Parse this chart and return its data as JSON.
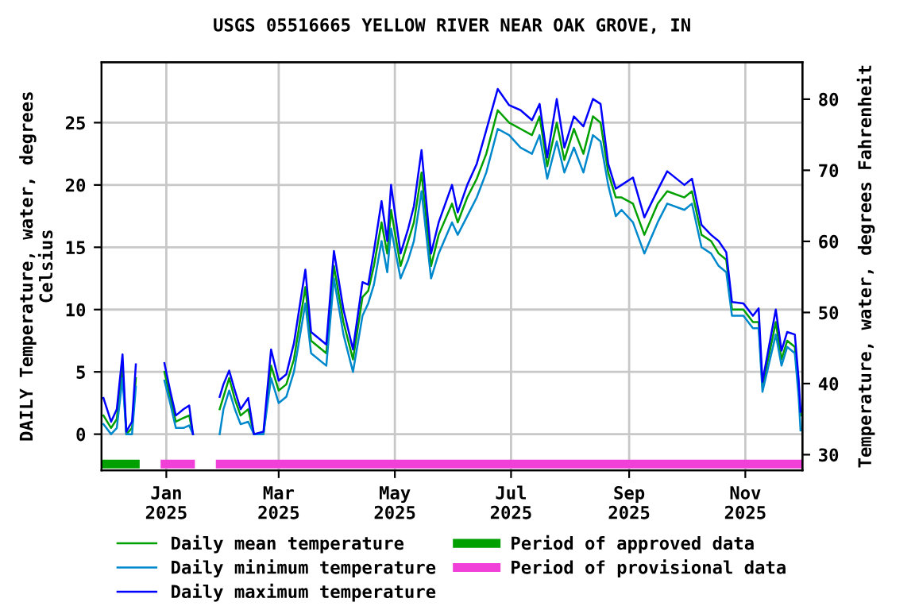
{
  "chart_data": {
    "type": "line",
    "title": "USGS 05516665 YELLOW RIVER NEAR OAK GROVE, IN",
    "ylabel": "DAILY Temperature, water, degrees\nCelsius",
    "y2label": "Temperature, water, degrees Fahrenheit",
    "x": [
      "2024-11-29",
      "2024-12-03",
      "2024-12-06",
      "2024-12-09",
      "2024-12-11",
      "2024-12-14",
      "2024-12-16",
      "2024-12-20",
      "2024-12-31",
      "2025-01-03",
      "2025-01-06",
      "2025-01-10",
      "2025-01-13",
      "2025-01-15",
      "2025-01-22",
      "2025-01-29",
      "2025-01-31",
      "2025-02-03",
      "2025-02-06",
      "2025-02-09",
      "2025-02-13",
      "2025-02-16",
      "2025-02-21",
      "2025-02-25",
      "2025-03-01",
      "2025-03-05",
      "2025-03-09",
      "2025-03-15",
      "2025-03-18",
      "2025-03-26",
      "2025-03-30",
      "2025-04-04",
      "2025-04-09",
      "2025-04-14",
      "2025-04-17",
      "2025-04-20",
      "2025-04-24",
      "2025-04-27",
      "2025-04-29",
      "2025-05-04",
      "2025-05-08",
      "2025-05-11",
      "2025-05-15",
      "2025-05-20",
      "2025-05-24",
      "2025-05-31",
      "2025-06-03",
      "2025-06-08",
      "2025-06-13",
      "2025-06-18",
      "2025-06-24",
      "2025-06-30",
      "2025-07-06",
      "2025-07-12",
      "2025-07-16",
      "2025-07-20",
      "2025-07-25",
      "2025-07-29",
      "2025-08-03",
      "2025-08-08",
      "2025-08-13",
      "2025-08-17",
      "2025-08-21",
      "2025-08-25",
      "2025-08-28",
      "2025-09-03",
      "2025-09-09",
      "2025-09-16",
      "2025-09-21",
      "2025-09-30",
      "2025-10-04",
      "2025-10-09",
      "2025-10-14",
      "2025-10-18",
      "2025-10-22",
      "2025-10-25",
      "2025-10-31",
      "2025-11-05",
      "2025-11-08",
      "2025-11-10",
      "2025-11-17",
      "2025-11-20",
      "2025-11-23",
      "2025-11-27",
      "2025-11-29",
      "2025-11-30"
    ],
    "series": [
      {
        "name": "Daily mean temperature",
        "color": "#00a000",
        "values": [
          1.5,
          0.5,
          1.2,
          5.5,
          0.0,
          0.5,
          4.5,
          null,
          5.0,
          3.0,
          1.0,
          1.3,
          1.5,
          0.0,
          null,
          2.0,
          3.0,
          4.5,
          2.8,
          1.5,
          2.0,
          0.0,
          0.0,
          5.5,
          3.5,
          4.0,
          6.0,
          11.8,
          7.5,
          6.5,
          13.5,
          9.0,
          6.0,
          11.0,
          11.5,
          13.5,
          17.0,
          14.5,
          18.0,
          13.5,
          15.5,
          17.0,
          21.0,
          13.5,
          16.0,
          18.5,
          17.0,
          19.0,
          20.5,
          22.5,
          26.0,
          25.0,
          24.5,
          24.0,
          25.5,
          21.5,
          25.0,
          22.0,
          24.5,
          22.5,
          25.5,
          25.0,
          21.0,
          19.0,
          19.0,
          18.5,
          16.0,
          18.5,
          19.5,
          19.0,
          19.5,
          16.0,
          15.5,
          14.5,
          14.0,
          10.0,
          10.0,
          9.0,
          9.0,
          3.8,
          9.0,
          6.0,
          7.5,
          7.0,
          3.5,
          1.5
        ]
      },
      {
        "name": "Daily minimum temperature",
        "color": "#0088cc",
        "values": [
          0.8,
          0.0,
          0.5,
          4.5,
          0.0,
          0.0,
          3.8,
          null,
          4.3,
          2.5,
          0.5,
          0.5,
          0.7,
          0.0,
          null,
          0.0,
          2.0,
          3.5,
          2.0,
          0.8,
          1.0,
          0.0,
          0.0,
          4.5,
          2.5,
          3.0,
          5.0,
          10.5,
          6.5,
          5.5,
          12.5,
          8.0,
          5.0,
          9.5,
          10.5,
          12.0,
          15.5,
          13.0,
          16.5,
          12.5,
          14.0,
          15.5,
          19.5,
          12.5,
          14.5,
          17.0,
          16.0,
          17.5,
          19.0,
          21.0,
          24.5,
          24.0,
          23.0,
          22.5,
          24.0,
          20.5,
          23.5,
          21.0,
          23.0,
          21.0,
          24.0,
          23.5,
          20.0,
          17.5,
          18.0,
          17.0,
          14.5,
          17.0,
          18.5,
          18.0,
          18.5,
          15.0,
          14.5,
          13.5,
          13.0,
          9.5,
          9.5,
          8.5,
          8.5,
          3.4,
          8.0,
          5.5,
          7.0,
          6.5,
          3.0,
          0.3
        ]
      },
      {
        "name": "Daily maximum temperature",
        "color": "#0000ff",
        "values": [
          2.9,
          1.0,
          2.0,
          6.4,
          0.2,
          1.0,
          5.6,
          null,
          5.7,
          3.5,
          1.5,
          2.0,
          2.3,
          0.0,
          null,
          3.0,
          4.0,
          5.1,
          3.5,
          2.0,
          2.9,
          0.0,
          0.2,
          6.8,
          4.3,
          4.8,
          7.3,
          13.2,
          8.2,
          7.2,
          14.7,
          10.0,
          6.8,
          12.2,
          12.0,
          14.7,
          18.7,
          15.5,
          20.0,
          14.5,
          16.5,
          18.3,
          22.8,
          14.5,
          17.0,
          20.0,
          17.8,
          20.0,
          21.7,
          24.4,
          27.7,
          26.4,
          26.0,
          25.2,
          26.5,
          22.2,
          26.9,
          23.0,
          25.5,
          24.7,
          26.9,
          26.5,
          21.7,
          19.7,
          20.0,
          20.6,
          17.4,
          19.6,
          21.1,
          20.0,
          20.5,
          16.8,
          16.0,
          15.5,
          14.6,
          10.6,
          10.5,
          9.5,
          10.1,
          4.2,
          10.0,
          6.7,
          8.2,
          8.0,
          4.4,
          1.8
        ]
      },
      {
        "name": "Period of approved data",
        "type": "step",
        "color": "#00a000",
        "x": [
          "2024-11-28",
          "2024-12-18"
        ],
        "values": [
          -2.4,
          -2.4
        ]
      },
      {
        "name": "Period of provisional data",
        "type": "step",
        "color": "#f040d8",
        "x": [
          "2024-12-29",
          "2025-01-16",
          "2025-01-21",
          "2025-01-27",
          "2025-12-01"
        ],
        "values": [
          -2.4,
          -2.4,
          null,
          -2.4,
          -2.4
        ]
      }
    ],
    "xlim": [
      "2024-11-28",
      "2025-12-01"
    ],
    "xticks": [
      {
        "value": "2025-01-01",
        "label": "Jan\n2025"
      },
      {
        "value": "2025-03-01",
        "label": "Mar\n2025"
      },
      {
        "value": "2025-05-01",
        "label": "May\n2025"
      },
      {
        "value": "2025-07-01",
        "label": "Jul\n2025"
      },
      {
        "value": "2025-09-01",
        "label": "Sep\n2025"
      },
      {
        "value": "2025-11-01",
        "label": "Nov\n2025"
      }
    ],
    "ylim": [
      -2.9,
      29.85
    ],
    "yticks": [
      0,
      5,
      10,
      15,
      20,
      25
    ],
    "y2lim": [
      27.8,
      85.2
    ],
    "y2ticks": [
      30,
      40,
      50,
      60,
      70,
      80
    ],
    "grid": true,
    "legend": "bottom",
    "marker": "none",
    "line_style": "solid"
  }
}
